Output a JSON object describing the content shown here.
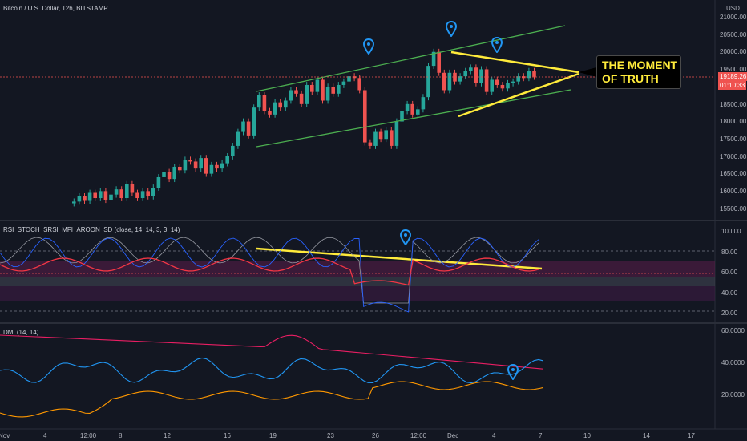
{
  "main": {
    "title": "Bitcoin / U.S. Dollar, 12h, BITSTAMP",
    "currency": "USD",
    "price_ticks": [
      "21000.00",
      "20500.00",
      "20000.00",
      "19500.00",
      "19000.00",
      "18500.00",
      "18000.00",
      "17500.00",
      "17000.00",
      "16500.00",
      "16000.00",
      "15500.00"
    ],
    "last_price": "19189.26",
    "countdown": "01:10:33",
    "callout_line1": "THE MOMENT",
    "callout_line2": "OF TRUTH",
    "colors": {
      "up": "#26a69a",
      "down": "#ef5350",
      "channel": "#4caf50",
      "triangle": "#ffeb3b",
      "pin": "#2196f3"
    }
  },
  "rsi_pane": {
    "title": "RSI_STOCH_SRSI_MFI_AROON_SD (close, 14, 14, 3, 3, 14)",
    "ticks": [
      "100.00",
      "80.00",
      "60.00",
      "40.00",
      "20.00"
    ]
  },
  "dmi_pane": {
    "title": "DMI (14, 14)",
    "ticks": [
      "60.0000",
      "40.0000",
      "20.0000"
    ]
  },
  "time_axis": [
    "Nov",
    "4",
    "12:00",
    "8",
    "12",
    "16",
    "19",
    "23",
    "26",
    "12:00",
    "Dec",
    "4",
    "7",
    "10",
    "14",
    "17"
  ],
  "icons": [
    "map-pin-icon",
    "map-pin-icon",
    "map-pin-icon",
    "map-pin-icon",
    "map-pin-icon"
  ]
}
